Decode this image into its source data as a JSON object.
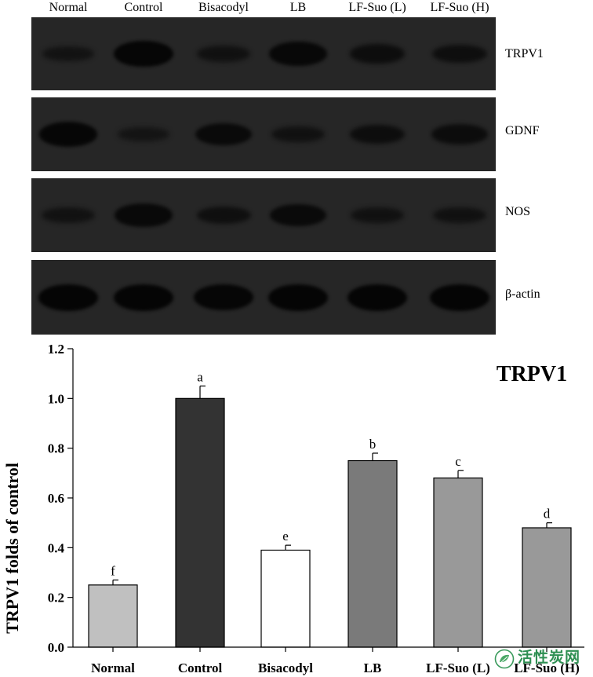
{
  "blot": {
    "lanes": [
      "Normal",
      "Control",
      "Bisacodyl",
      "LB",
      "LF-Suo (L)",
      "LF-Suo (H)"
    ],
    "proteins": [
      {
        "name": "TRPV1",
        "intensity": [
          0.35,
          0.95,
          0.45,
          0.85,
          0.6,
          0.55
        ]
      },
      {
        "name": "GDNF",
        "intensity": [
          0.9,
          0.3,
          0.75,
          0.45,
          0.6,
          0.65
        ]
      },
      {
        "name": "NOS",
        "intensity": [
          0.4,
          0.8,
          0.5,
          0.75,
          0.45,
          0.45
        ]
      },
      {
        "name": "β-actin",
        "intensity": [
          1.0,
          1.0,
          0.95,
          1.0,
          1.0,
          1.0
        ]
      }
    ]
  },
  "chart_data": {
    "type": "bar",
    "title": "TRPV1",
    "ylabel": "TRPV1 folds of control",
    "xlabel": "",
    "categories": [
      "Normal",
      "Control",
      "Bisacodyl",
      "LB",
      "LF-Suo (L)",
      "LF-Suo (H)"
    ],
    "values": [
      0.25,
      1.0,
      0.39,
      0.75,
      0.68,
      0.48
    ],
    "errors": [
      0.02,
      0.05,
      0.02,
      0.03,
      0.03,
      0.02
    ],
    "significance": [
      "f",
      "a",
      "e",
      "b",
      "c",
      "d"
    ],
    "bar_colors": [
      "#c0c0c0",
      "#333333",
      "#ffffff",
      "#7a7a7a",
      "#999999",
      "#999999"
    ],
    "ylim": [
      0,
      1.2
    ],
    "yticks": [
      "0.0",
      "0.2",
      "0.4",
      "0.6",
      "0.8",
      "1.0",
      "1.2"
    ],
    "grid": false,
    "legend": "none"
  },
  "watermark": {
    "text": "活性炭网"
  }
}
